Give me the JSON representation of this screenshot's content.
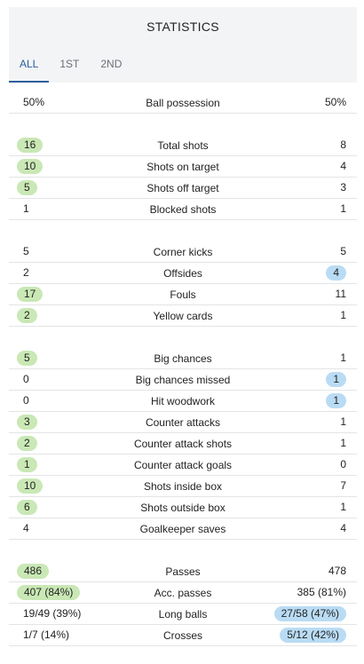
{
  "title": "STATISTICS",
  "tabs": [
    "ALL",
    "1ST",
    "2ND"
  ],
  "groups": [
    [
      {
        "label": "Ball possession",
        "home": "50%",
        "away": "50%",
        "hl": ""
      }
    ],
    [
      {
        "label": "Total shots",
        "home": "16",
        "away": "8",
        "hl": "home"
      },
      {
        "label": "Shots on target",
        "home": "10",
        "away": "4",
        "hl": "home"
      },
      {
        "label": "Shots off target",
        "home": "5",
        "away": "3",
        "hl": "home"
      },
      {
        "label": "Blocked shots",
        "home": "1",
        "away": "1",
        "hl": ""
      }
    ],
    [
      {
        "label": "Corner kicks",
        "home": "5",
        "away": "5",
        "hl": ""
      },
      {
        "label": "Offsides",
        "home": "2",
        "away": "4",
        "hl": "away"
      },
      {
        "label": "Fouls",
        "home": "17",
        "away": "11",
        "hl": "home"
      },
      {
        "label": "Yellow cards",
        "home": "2",
        "away": "1",
        "hl": "home"
      }
    ],
    [
      {
        "label": "Big chances",
        "home": "5",
        "away": "1",
        "hl": "home"
      },
      {
        "label": "Big chances missed",
        "home": "0",
        "away": "1",
        "hl": "away"
      },
      {
        "label": "Hit woodwork",
        "home": "0",
        "away": "1",
        "hl": "away"
      },
      {
        "label": "Counter attacks",
        "home": "3",
        "away": "1",
        "hl": "home"
      },
      {
        "label": "Counter attack shots",
        "home": "2",
        "away": "1",
        "hl": "home"
      },
      {
        "label": "Counter attack goals",
        "home": "1",
        "away": "0",
        "hl": "home"
      },
      {
        "label": "Shots inside box",
        "home": "10",
        "away": "7",
        "hl": "home"
      },
      {
        "label": "Shots outside box",
        "home": "6",
        "away": "1",
        "hl": "home"
      },
      {
        "label": "Goalkeeper saves",
        "home": "4",
        "away": "4",
        "hl": ""
      }
    ],
    [
      {
        "label": "Passes",
        "home": "486",
        "away": "478",
        "hl": "home"
      },
      {
        "label": "Acc. passes",
        "home": "407 (84%)",
        "away": "385 (81%)",
        "hl": "home"
      },
      {
        "label": "Long balls",
        "home": "19/49 (39%)",
        "away": "27/58 (47%)",
        "hl": "away"
      },
      {
        "label": "Crosses",
        "home": "1/7 (14%)",
        "away": "5/12 (42%)",
        "hl": "away"
      }
    ]
  ],
  "colors": {
    "home_highlight": "#c9e8b5",
    "away_highlight": "#b9dcf4",
    "active_tab": "#2b5f9b"
  }
}
